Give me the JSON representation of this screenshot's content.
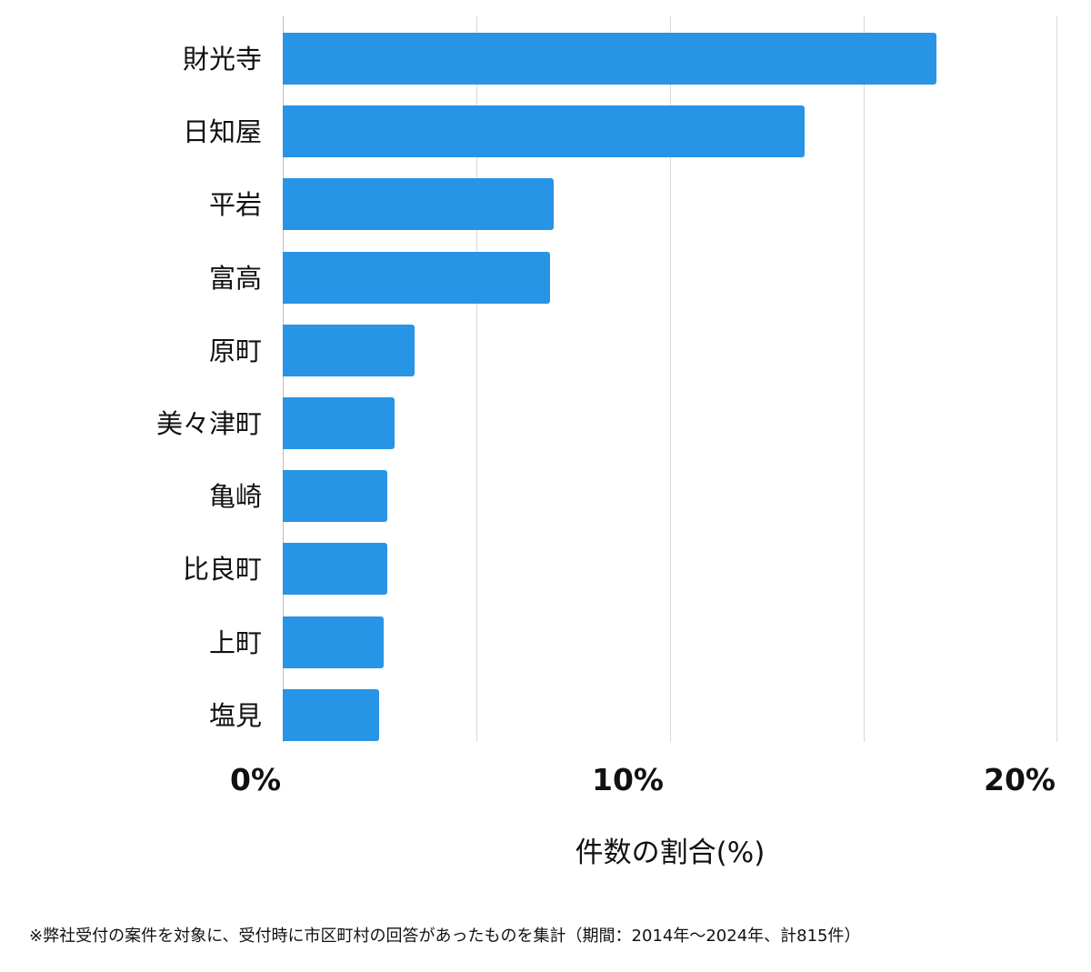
{
  "chart_data": {
    "type": "bar",
    "orientation": "horizontal",
    "categories": [
      "財光寺",
      "日知屋",
      "平岩",
      "富高",
      "原町",
      "美々津町",
      "亀崎",
      "比良町",
      "上町",
      "塩見"
    ],
    "values": [
      16.9,
      13.5,
      7.0,
      6.9,
      3.4,
      2.9,
      2.7,
      2.7,
      2.6,
      2.5
    ],
    "title": "",
    "xlabel": "件数の割合(%)",
    "ylabel": "",
    "xlim": [
      0,
      20
    ],
    "xticks": [
      "0%",
      "10%",
      "20%"
    ],
    "grid": true,
    "gridlines_at": [
      0,
      5,
      10,
      15,
      20
    ],
    "bar_color": "#2794e6",
    "legend": null
  },
  "labels": {
    "categories": [
      "財光寺",
      "日知屋",
      "平岩",
      "富高",
      "原町",
      "美々津町",
      "亀崎",
      "比良町",
      "上町",
      "塩見"
    ],
    "ticks": [
      "0%",
      "10%",
      "20%"
    ],
    "xlabel": "件数の割合(%)",
    "footnote": "※弊社受付の案件を対象に、受付時に市区町村の回答があったものを集計（期間：2014年～2024年、計815件）"
  }
}
